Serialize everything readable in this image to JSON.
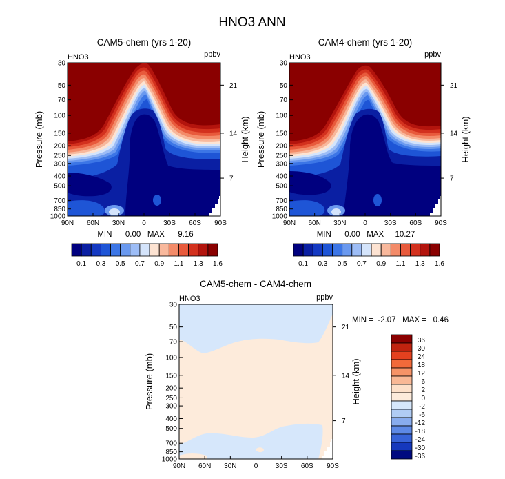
{
  "figure_title": "HNO3 ANN",
  "chart_data": [
    {
      "type": "heatmap",
      "title": "CAM5-chem (yrs 1-20)",
      "variable": "HNO3",
      "units": "ppbv",
      "xlabel": "",
      "ylabel": "Pressure (mb)",
      "y2label": "Height (km)",
      "x_ticks": [
        "90N",
        "60N",
        "30N",
        "0",
        "30S",
        "60S",
        "90S"
      ],
      "y_ticks": [
        "30",
        "50",
        "70",
        "100",
        "150",
        "200",
        "250",
        "300",
        "400",
        "500",
        "700",
        "850",
        "1000"
      ],
      "y2_ticks": [
        "21",
        "14",
        "7"
      ],
      "ylim": [
        1000,
        30
      ],
      "stats": "MIN =   0.00   MAX =   9.16",
      "min": 0.0,
      "max": 9.16,
      "colorbar_labels": [
        "0.1",
        "0.3",
        "0.5",
        "0.7",
        "0.9",
        "1.1",
        "1.3",
        "1.6"
      ]
    },
    {
      "type": "heatmap",
      "title": "CAM4-chem (yrs 1-20)",
      "variable": "HNO3",
      "units": "ppbv",
      "xlabel": "",
      "ylabel": "Pressure (mb)",
      "y2label": "Height (km)",
      "x_ticks": [
        "90N",
        "60N",
        "30N",
        "0",
        "30S",
        "60S",
        "90S"
      ],
      "y_ticks": [
        "30",
        "50",
        "70",
        "100",
        "150",
        "200",
        "250",
        "300",
        "400",
        "500",
        "700",
        "850",
        "1000"
      ],
      "y2_ticks": [
        "21",
        "14",
        "7"
      ],
      "ylim": [
        1000,
        30
      ],
      "stats": "MIN =   0.00   MAX =  10.27",
      "min": 0.0,
      "max": 10.27,
      "colorbar_labels": [
        "0.1",
        "0.3",
        "0.5",
        "0.7",
        "0.9",
        "1.1",
        "1.3",
        "1.6"
      ]
    },
    {
      "type": "heatmap",
      "title": "CAM5-chem - CAM4-chem",
      "variable": "HNO3",
      "units": "ppbv",
      "xlabel": "",
      "ylabel": "Pressure (mb)",
      "y2label": "Height (km)",
      "x_ticks": [
        "90N",
        "60N",
        "30N",
        "0",
        "30S",
        "60S",
        "90S"
      ],
      "y_ticks": [
        "30",
        "50",
        "70",
        "100",
        "150",
        "200",
        "250",
        "300",
        "400",
        "500",
        "700",
        "850",
        "1000"
      ],
      "y2_ticks": [
        "21",
        "14",
        "7"
      ],
      "ylim": [
        1000,
        30
      ],
      "stats": "MIN =  -2.07   MAX =   0.46",
      "min": -2.07,
      "max": 0.46,
      "colorbar_labels": [
        "36",
        "30",
        "24",
        "18",
        "12",
        "6",
        "2",
        "0",
        "-2",
        "-6",
        "-12",
        "-18",
        "-24",
        "-30",
        "-36"
      ]
    }
  ],
  "colors": {
    "seq_levels": [
      "#00007f",
      "#0a1fa3",
      "#1439c2",
      "#1e55d6",
      "#3c76e6",
      "#6a99ef",
      "#9dbdf6",
      "#d4e4fb",
      "#fde3d2",
      "#f8b89c",
      "#f38b69",
      "#e85a3c",
      "#d3311e",
      "#b3140d",
      "#8a0000"
    ],
    "diff_levels": [
      "#8a0000",
      "#c0230f",
      "#e4411f",
      "#f26a3a",
      "#f69367",
      "#f9b895",
      "#fde0c9",
      "#fdebdb",
      "#d6e7fb",
      "#b0ccf4",
      "#88acee",
      "#5d89e6",
      "#3763d8",
      "#1538bd",
      "#000a80"
    ]
  }
}
